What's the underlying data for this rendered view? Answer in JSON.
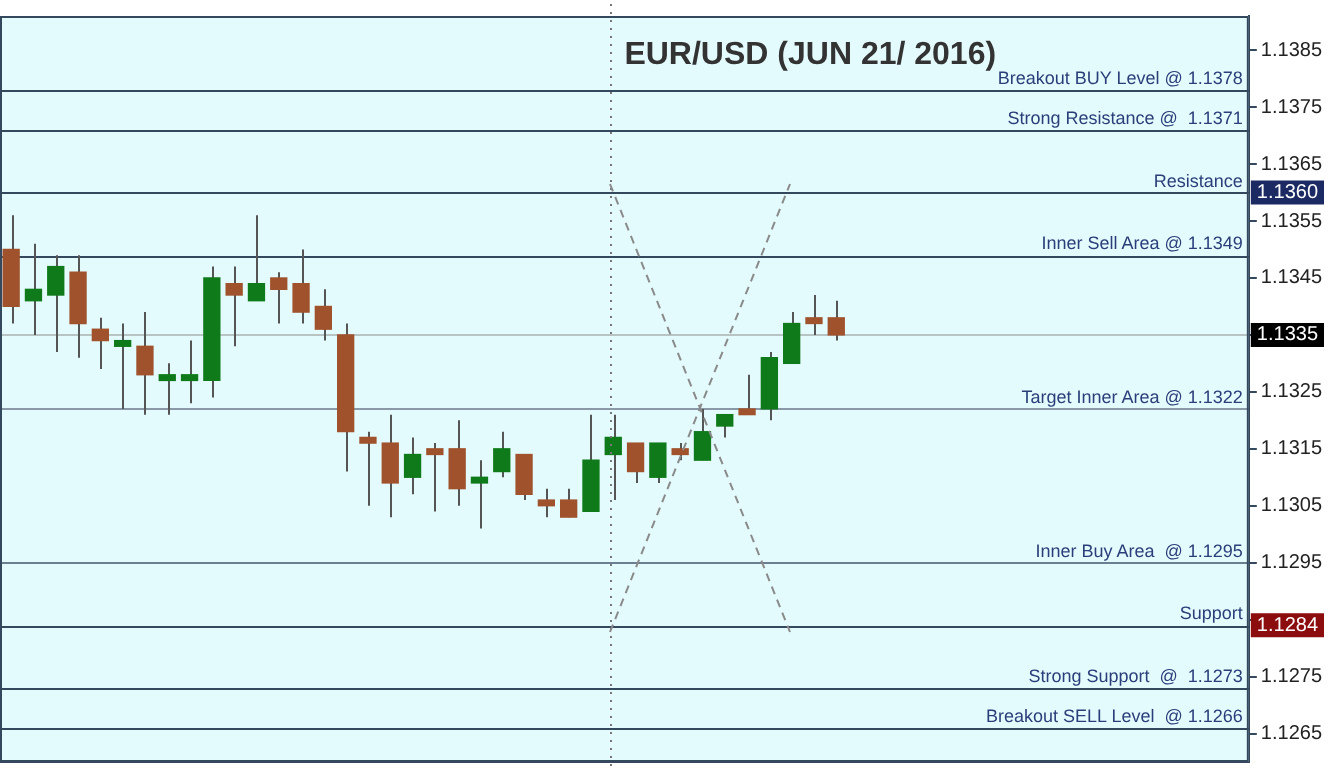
{
  "chart_data": {
    "type": "candlestick",
    "title": "EUR/USD (JUN 21/ 2016)",
    "categories": [
      null,
      null,
      null,
      null,
      null,
      null,
      null,
      null,
      null,
      null,
      null,
      null,
      null,
      null,
      null,
      null,
      null,
      null,
      null,
      null,
      null,
      null,
      null,
      null,
      null,
      null,
      null,
      null,
      null,
      null,
      null,
      null,
      null,
      null,
      null,
      null,
      null,
      null,
      null,
      null,
      null,
      null,
      null,
      null,
      null,
      null,
      null,
      null,
      null,
      null,
      null,
      null,
      null,
      null,
      null,
      null
    ],
    "ohlc": [
      [
        1.135,
        1.1356,
        1.1337,
        1.134
      ],
      [
        1.1341,
        1.1351,
        1.1335,
        1.1343
      ],
      [
        1.1342,
        1.1349,
        1.1332,
        1.1347
      ],
      [
        1.1346,
        1.1349,
        1.1331,
        1.1337
      ],
      [
        1.1336,
        1.1338,
        1.1329,
        1.1334
      ],
      [
        1.1333,
        1.1337,
        1.1322,
        1.1334
      ],
      [
        1.1333,
        1.1339,
        1.1321,
        1.1328
      ],
      [
        1.1327,
        1.133,
        1.1321,
        1.1328
      ],
      [
        1.1327,
        1.1334,
        1.1323,
        1.1328
      ],
      [
        1.1327,
        1.1347,
        1.1324,
        1.1345
      ],
      [
        1.1344,
        1.1347,
        1.1333,
        1.1342
      ],
      [
        1.1341,
        1.1356,
        1.1341,
        1.1344
      ],
      [
        1.1345,
        1.1346,
        1.1337,
        1.1343
      ],
      [
        1.1344,
        1.135,
        1.1337,
        1.1339
      ],
      [
        1.134,
        1.1343,
        1.1334,
        1.1336
      ],
      [
        1.1335,
        1.1337,
        1.1311,
        1.1318
      ],
      [
        1.1317,
        1.1318,
        1.1305,
        1.1316
      ],
      [
        1.1316,
        1.1321,
        1.1303,
        1.1309
      ],
      [
        1.131,
        1.1317,
        1.1307,
        1.1314
      ],
      [
        1.1315,
        1.1316,
        1.1304,
        1.1314
      ],
      [
        1.1315,
        1.132,
        1.1305,
        1.1308
      ],
      [
        1.1309,
        1.1313,
        1.1301,
        1.131
      ],
      [
        1.1311,
        1.1318,
        1.131,
        1.1315
      ],
      [
        1.1314,
        1.1314,
        1.1306,
        1.1307
      ],
      [
        1.1306,
        1.1308,
        1.1303,
        1.1305
      ],
      [
        1.1306,
        1.1308,
        1.1303,
        1.1303
      ],
      [
        1.1304,
        1.1321,
        1.1304,
        1.1313
      ],
      [
        1.1314,
        1.1321,
        1.1306,
        1.1317
      ],
      [
        1.1316,
        1.1316,
        1.1309,
        1.1311
      ],
      [
        1.131,
        1.1316,
        1.1309,
        1.1316
      ],
      [
        1.1315,
        1.1316,
        1.1313,
        1.1314
      ],
      [
        1.1313,
        1.1322,
        1.1313,
        1.1318
      ],
      [
        1.1319,
        1.1321,
        1.1317,
        1.1321
      ],
      [
        1.1322,
        1.1328,
        1.1321,
        1.1321
      ],
      [
        1.1322,
        1.1332,
        1.132,
        1.1331
      ],
      [
        1.133,
        1.1339,
        1.133,
        1.1337
      ],
      [
        1.1338,
        1.1342,
        1.1335,
        1.1337
      ],
      [
        1.1338,
        1.1341,
        1.1334,
        1.1335
      ],
      null,
      null,
      null,
      null,
      null,
      null,
      null,
      null,
      null,
      null,
      null,
      null,
      null,
      null,
      null,
      null,
      null,
      null
    ],
    "ylim": [
      1.126,
      1.1391
    ],
    "yticks": [
      1.1385,
      1.1375,
      1.1365,
      1.1355,
      1.1345,
      {
        "value": 1.1335,
        "label": null
      },
      1.1325,
      1.1315,
      1.1305,
      1.1295,
      {
        "value": 1.1285,
        "label": null
      },
      1.1275,
      1.1265
    ],
    "tick_labels": "y",
    "ref_lines": [
      {
        "axis": "y",
        "value": 1.1378,
        "label": "Breakout BUY Level @ 1.1378",
        "color": "#34495e"
      },
      {
        "axis": "y",
        "value": 1.1371,
        "label": "Strong Resistance @  1.1371",
        "color": "#34495e"
      },
      {
        "axis": "y",
        "value": 1.136,
        "label": "Resistance",
        "color": "#34495e"
      },
      {
        "axis": "y",
        "value": 1.1349,
        "label": "Inner Sell Area @ 1.1349",
        "color": "#34495e"
      },
      {
        "axis": "y",
        "value": 1.1335,
        "color": "#b8c4c4"
      },
      {
        "axis": "y",
        "value": 1.1322,
        "label": "Target Inner Area @ 1.1322",
        "color": "#8a99a8"
      },
      {
        "axis": "y",
        "value": 1.1295,
        "label": "Inner Buy Area  @ 1.1295",
        "color": "#6c7f90"
      },
      {
        "axis": "y",
        "value": 1.1284,
        "label": "Support",
        "color": "#34495e"
      },
      {
        "axis": "y",
        "value": 1.1273,
        "label": "Strong Support  @  1.1273",
        "color": "#34495e"
      },
      {
        "axis": "y",
        "value": 1.1266,
        "label": "Breakout SELL Level  @ 1.1266",
        "color": "#34495e"
      }
    ],
    "annotations": [
      {
        "text": "1.1360",
        "y": 1.136
      },
      {
        "text": "1.1335",
        "y": 1.1335
      },
      {
        "text": "1.1284",
        "y": 1.1284
      }
    ]
  }
}
